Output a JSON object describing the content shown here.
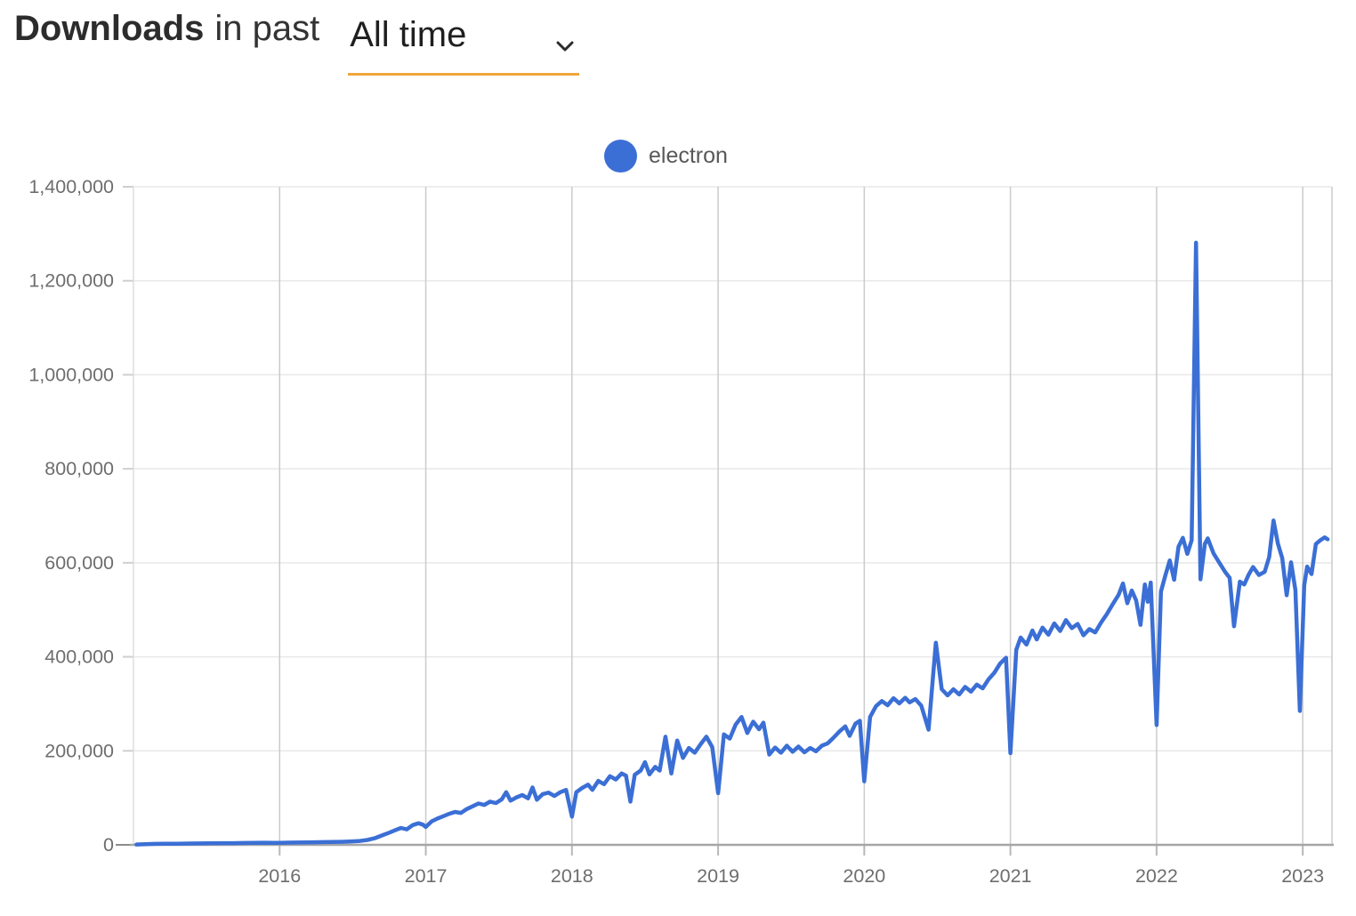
{
  "header": {
    "title_bold": "Downloads",
    "title_rest": "in past",
    "period_value": "All time",
    "underline_color": "#f0a63a"
  },
  "legend": {
    "label": "electron",
    "dot_color": "#3b6fd5"
  },
  "chart_data": {
    "type": "line",
    "title": "",
    "xlabel": "",
    "ylabel": "",
    "xlim": [
      2015.0,
      2023.2
    ],
    "ylim": [
      0,
      1400000
    ],
    "grid": true,
    "legend_position": "top-center",
    "x_ticks": [
      {
        "value": 2016,
        "label": "2016"
      },
      {
        "value": 2017,
        "label": "2017"
      },
      {
        "value": 2018,
        "label": "2018"
      },
      {
        "value": 2019,
        "label": "2019"
      },
      {
        "value": 2020,
        "label": "2020"
      },
      {
        "value": 2021,
        "label": "2021"
      },
      {
        "value": 2022,
        "label": "2022"
      },
      {
        "value": 2023,
        "label": "2023"
      }
    ],
    "y_ticks": [
      {
        "value": 0,
        "label": "0"
      },
      {
        "value": 200000,
        "label": "200,000"
      },
      {
        "value": 400000,
        "label": "400,000"
      },
      {
        "value": 600000,
        "label": "600,000"
      },
      {
        "value": 800000,
        "label": "800,000"
      },
      {
        "value": 1000000,
        "label": "1,000,000"
      },
      {
        "value": 1200000,
        "label": "1,200,000"
      },
      {
        "value": 1400000,
        "label": "1,400,000"
      }
    ],
    "series": [
      {
        "name": "electron",
        "color": "#3b6fd5",
        "points": [
          [
            2015.02,
            800
          ],
          [
            2015.08,
            1500
          ],
          [
            2015.15,
            2000
          ],
          [
            2015.22,
            2200
          ],
          [
            2015.3,
            2500
          ],
          [
            2015.38,
            2800
          ],
          [
            2015.45,
            3000
          ],
          [
            2015.52,
            3200
          ],
          [
            2015.6,
            3500
          ],
          [
            2015.68,
            3600
          ],
          [
            2015.75,
            4000
          ],
          [
            2015.82,
            4200
          ],
          [
            2015.9,
            4500
          ],
          [
            2015.96,
            4300
          ],
          [
            2016.0,
            4200
          ],
          [
            2016.06,
            4800
          ],
          [
            2016.12,
            5000
          ],
          [
            2016.18,
            5300
          ],
          [
            2016.24,
            5500
          ],
          [
            2016.3,
            5800
          ],
          [
            2016.36,
            6200
          ],
          [
            2016.42,
            6500
          ],
          [
            2016.48,
            7000
          ],
          [
            2016.54,
            8000
          ],
          [
            2016.6,
            10500
          ],
          [
            2016.65,
            14000
          ],
          [
            2016.7,
            20000
          ],
          [
            2016.75,
            26000
          ],
          [
            2016.79,
            31000
          ],
          [
            2016.83,
            36000
          ],
          [
            2016.87,
            33000
          ],
          [
            2016.91,
            42000
          ],
          [
            2016.95,
            46000
          ],
          [
            2016.98,
            43000
          ],
          [
            2017.0,
            38000
          ],
          [
            2017.04,
            50000
          ],
          [
            2017.08,
            56000
          ],
          [
            2017.12,
            61000
          ],
          [
            2017.16,
            66000
          ],
          [
            2017.2,
            70000
          ],
          [
            2017.24,
            68000
          ],
          [
            2017.28,
            76000
          ],
          [
            2017.32,
            82000
          ],
          [
            2017.36,
            88000
          ],
          [
            2017.4,
            85000
          ],
          [
            2017.44,
            92000
          ],
          [
            2017.48,
            89000
          ],
          [
            2017.52,
            97000
          ],
          [
            2017.55,
            112000
          ],
          [
            2017.58,
            94000
          ],
          [
            2017.62,
            101000
          ],
          [
            2017.66,
            106000
          ],
          [
            2017.7,
            99000
          ],
          [
            2017.73,
            122000
          ],
          [
            2017.76,
            96000
          ],
          [
            2017.8,
            108000
          ],
          [
            2017.84,
            111000
          ],
          [
            2017.88,
            104000
          ],
          [
            2017.92,
            112000
          ],
          [
            2017.96,
            117000
          ],
          [
            2018.0,
            60000
          ],
          [
            2018.03,
            112000
          ],
          [
            2018.07,
            121000
          ],
          [
            2018.11,
            128000
          ],
          [
            2018.14,
            117000
          ],
          [
            2018.18,
            136000
          ],
          [
            2018.22,
            129000
          ],
          [
            2018.26,
            146000
          ],
          [
            2018.3,
            139000
          ],
          [
            2018.34,
            152000
          ],
          [
            2018.37,
            147000
          ],
          [
            2018.4,
            92000
          ],
          [
            2018.43,
            149000
          ],
          [
            2018.47,
            158000
          ],
          [
            2018.5,
            176000
          ],
          [
            2018.53,
            150000
          ],
          [
            2018.57,
            166000
          ],
          [
            2018.6,
            158000
          ],
          [
            2018.64,
            230000
          ],
          [
            2018.68,
            152000
          ],
          [
            2018.72,
            222000
          ],
          [
            2018.76,
            185000
          ],
          [
            2018.8,
            206000
          ],
          [
            2018.84,
            196000
          ],
          [
            2018.88,
            214000
          ],
          [
            2018.92,
            230000
          ],
          [
            2018.96,
            208000
          ],
          [
            2019.0,
            110000
          ],
          [
            2019.04,
            235000
          ],
          [
            2019.08,
            226000
          ],
          [
            2019.12,
            256000
          ],
          [
            2019.16,
            272000
          ],
          [
            2019.2,
            238000
          ],
          [
            2019.24,
            262000
          ],
          [
            2019.28,
            246000
          ],
          [
            2019.31,
            260000
          ],
          [
            2019.35,
            192000
          ],
          [
            2019.39,
            207000
          ],
          [
            2019.43,
            196000
          ],
          [
            2019.47,
            211000
          ],
          [
            2019.51,
            198000
          ],
          [
            2019.55,
            209000
          ],
          [
            2019.59,
            197000
          ],
          [
            2019.63,
            206000
          ],
          [
            2019.67,
            199000
          ],
          [
            2019.71,
            211000
          ],
          [
            2019.75,
            216000
          ],
          [
            2019.79,
            228000
          ],
          [
            2019.83,
            241000
          ],
          [
            2019.87,
            252000
          ],
          [
            2019.9,
            232000
          ],
          [
            2019.94,
            258000
          ],
          [
            2019.97,
            264000
          ],
          [
            2020.0,
            135000
          ],
          [
            2020.04,
            272000
          ],
          [
            2020.08,
            295000
          ],
          [
            2020.12,
            306000
          ],
          [
            2020.16,
            297000
          ],
          [
            2020.2,
            312000
          ],
          [
            2020.24,
            301000
          ],
          [
            2020.28,
            313000
          ],
          [
            2020.31,
            303000
          ],
          [
            2020.35,
            310000
          ],
          [
            2020.39,
            296000
          ],
          [
            2020.44,
            245000
          ],
          [
            2020.49,
            430000
          ],
          [
            2020.53,
            331000
          ],
          [
            2020.57,
            318000
          ],
          [
            2020.61,
            331000
          ],
          [
            2020.65,
            320000
          ],
          [
            2020.69,
            336000
          ],
          [
            2020.73,
            326000
          ],
          [
            2020.77,
            341000
          ],
          [
            2020.81,
            333000
          ],
          [
            2020.85,
            352000
          ],
          [
            2020.89,
            366000
          ],
          [
            2020.93,
            386000
          ],
          [
            2020.97,
            398000
          ],
          [
            2021.0,
            195000
          ],
          [
            2021.04,
            415000
          ],
          [
            2021.07,
            441000
          ],
          [
            2021.11,
            426000
          ],
          [
            2021.15,
            456000
          ],
          [
            2021.18,
            437000
          ],
          [
            2021.22,
            462000
          ],
          [
            2021.26,
            447000
          ],
          [
            2021.3,
            471000
          ],
          [
            2021.34,
            455000
          ],
          [
            2021.38,
            478000
          ],
          [
            2021.42,
            461000
          ],
          [
            2021.46,
            470000
          ],
          [
            2021.5,
            446000
          ],
          [
            2021.54,
            459000
          ],
          [
            2021.58,
            452000
          ],
          [
            2021.62,
            473000
          ],
          [
            2021.66,
            491000
          ],
          [
            2021.7,
            512000
          ],
          [
            2021.74,
            532000
          ],
          [
            2021.77,
            556000
          ],
          [
            2021.8,
            514000
          ],
          [
            2021.83,
            541000
          ],
          [
            2021.86,
            520000
          ],
          [
            2021.89,
            468000
          ],
          [
            2021.92,
            554000
          ],
          [
            2021.94,
            517000
          ],
          [
            2021.96,
            558000
          ],
          [
            2022.0,
            255000
          ],
          [
            2022.03,
            539000
          ],
          [
            2022.06,
            573000
          ],
          [
            2022.09,
            605000
          ],
          [
            2022.12,
            564000
          ],
          [
            2022.15,
            634000
          ],
          [
            2022.18,
            653000
          ],
          [
            2022.21,
            619000
          ],
          [
            2022.24,
            648000
          ],
          [
            2022.27,
            1281000
          ],
          [
            2022.3,
            565000
          ],
          [
            2022.33,
            640000
          ],
          [
            2022.35,
            652000
          ],
          [
            2022.39,
            620000
          ],
          [
            2022.43,
            600000
          ],
          [
            2022.47,
            580000
          ],
          [
            2022.5,
            568000
          ],
          [
            2022.53,
            465000
          ],
          [
            2022.57,
            560000
          ],
          [
            2022.6,
            554000
          ],
          [
            2022.63,
            575000
          ],
          [
            2022.66,
            591000
          ],
          [
            2022.7,
            574000
          ],
          [
            2022.74,
            581000
          ],
          [
            2022.77,
            612000
          ],
          [
            2022.8,
            690000
          ],
          [
            2022.83,
            641000
          ],
          [
            2022.86,
            610000
          ],
          [
            2022.89,
            531000
          ],
          [
            2022.92,
            601000
          ],
          [
            2022.95,
            542000
          ],
          [
            2022.98,
            285000
          ],
          [
            2023.01,
            552000
          ],
          [
            2023.03,
            592000
          ],
          [
            2023.06,
            576000
          ],
          [
            2023.09,
            640000
          ],
          [
            2023.12,
            648000
          ],
          [
            2023.15,
            654000
          ],
          [
            2023.17,
            650000
          ]
        ]
      }
    ]
  }
}
